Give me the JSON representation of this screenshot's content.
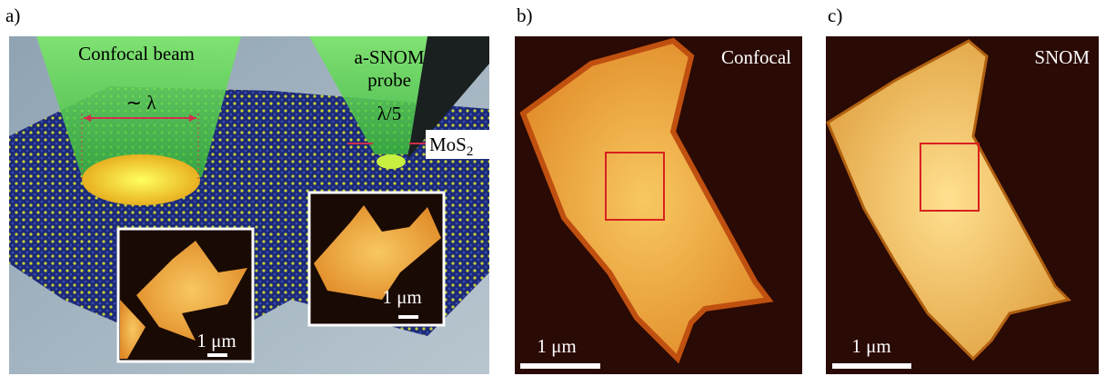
{
  "panels": [
    {
      "label": "a)",
      "beam_label": "Confocal beam",
      "beam_width": "∼ λ",
      "probe_label": [
        "a-SNOM",
        "probe"
      ],
      "probe_width": "λ/5",
      "material": {
        "base": "MoS",
        "sub": "2"
      },
      "insets": [
        {
          "scale": "1 μm"
        },
        {
          "scale": "1 μm"
        }
      ]
    },
    {
      "label": "b)",
      "title": "Confocal",
      "scale": "1 μm"
    },
    {
      "label": "c)",
      "title": "SNOM",
      "scale": "1 μm"
    }
  ]
}
